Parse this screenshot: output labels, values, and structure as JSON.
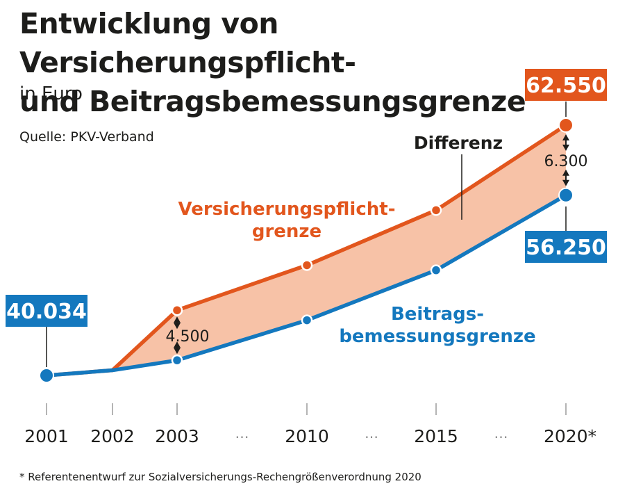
{
  "header": {
    "title_line1": "Entwicklung von Versicherungspflicht-",
    "title_line2": "und Beitragsbemessungsgrenze",
    "subtitle": "in Euro",
    "source": "Quelle: PKV-Verband"
  },
  "footnote": "* Referentenentwurf zur Sozialversicherungs-Rechengrößenverordnung 2020",
  "colors": {
    "orange": "#e2561d",
    "blue": "#1478be",
    "fill": "#f7c2a7",
    "dark": "#1d1d1b"
  },
  "chart_data": {
    "type": "line",
    "title": "Entwicklung von Versicherungspflicht- und Beitragsbemessungsgrenze",
    "ylabel": "in Euro",
    "categories": [
      "2001",
      "2002",
      "2003",
      "2010",
      "2015",
      "2020*"
    ],
    "gap_marker": "…",
    "series": [
      {
        "name": "Versicherungspflichtgrenze",
        "label_line1": "Versicherungspflicht-",
        "label_line2": "grenze",
        "values": [
          40034,
          40500,
          45900,
          49950,
          54900,
          62550
        ]
      },
      {
        "name": "Beitragsbemessungsgrenze",
        "label_line1": "Beitrags-",
        "label_line2": "bemessungsgrenze",
        "values": [
          40034,
          40500,
          41400,
          45000,
          49500,
          56250
        ]
      }
    ],
    "difference_label": "Differenz",
    "annotations": {
      "start_value": "40.034",
      "end_upper": "62.550",
      "end_lower": "56.250",
      "diff_2003": "4.500",
      "diff_2020": "6.300"
    }
  }
}
